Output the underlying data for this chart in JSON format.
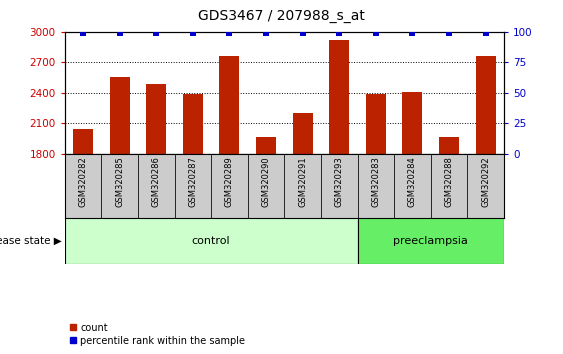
{
  "title": "GDS3467 / 207988_s_at",
  "samples": [
    "GSM320282",
    "GSM320285",
    "GSM320286",
    "GSM320287",
    "GSM320289",
    "GSM320290",
    "GSM320291",
    "GSM320293",
    "GSM320283",
    "GSM320284",
    "GSM320288",
    "GSM320292"
  ],
  "counts": [
    2050,
    2560,
    2490,
    2390,
    2760,
    1970,
    2200,
    2920,
    2390,
    2410,
    1970,
    2760
  ],
  "percentiles": [
    99,
    99,
    99,
    99,
    99,
    99,
    99,
    99,
    99,
    99,
    99,
    99
  ],
  "groups": [
    "control",
    "control",
    "control",
    "control",
    "control",
    "control",
    "control",
    "control",
    "preeclampsia",
    "preeclampsia",
    "preeclampsia",
    "preeclampsia"
  ],
  "bar_color": "#bb2200",
  "percentile_color": "#0000cc",
  "ylim_left": [
    1800,
    3000
  ],
  "ylim_right": [
    0,
    100
  ],
  "yticks_left": [
    1800,
    2100,
    2400,
    2700,
    3000
  ],
  "yticks_right": [
    0,
    25,
    50,
    75,
    100
  ],
  "grid_dotted_at": [
    2100,
    2400,
    2700
  ],
  "bar_color_red": "#bb2200",
  "ylabel_left_color": "#cc0000",
  "ylabel_right_color": "#0000cc",
  "bar_width": 0.55,
  "background_color": "#ffffff",
  "label_box_color": "#cccccc",
  "disease_state_label": "disease state",
  "control_label": "control",
  "preeclampsia_label": "preeclampsia",
  "control_color": "#ccffcc",
  "preeclampsia_color": "#66ee66",
  "legend_count_label": "count",
  "legend_percentile_label": "percentile rank within the sample",
  "title_fontsize": 10,
  "tick_fontsize": 7.5,
  "sample_fontsize": 6,
  "label_fontsize": 8,
  "legend_fontsize": 7
}
